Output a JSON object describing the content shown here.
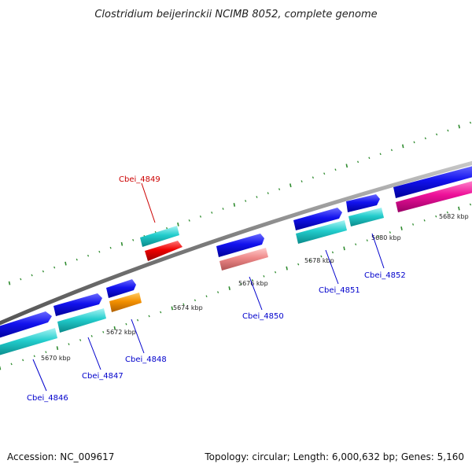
{
  "title": "Clostridium beijerinckii NCIMB 8052, complete genome",
  "footer": {
    "accession": "Accession: NC_009617",
    "info": "Topology: circular; Length: 6,000,632 bp; Genes: 5,160"
  },
  "colors": {
    "backbone": "#808080",
    "tick": "#2e8b2e",
    "gene_label_default": "#0000cc",
    "gene_label_highlight": "#cc0000",
    "callout_line_default": "#0000cc",
    "callout_line_highlight": "#cc0000"
  },
  "scale_labels": [
    "5670 kbp",
    "5672 kbp",
    "5674 kbp",
    "5676 kbp",
    "5678 kbp",
    "5680 kbp",
    "5682 kbp"
  ],
  "gene_labels": [
    {
      "name": "Cbei_4846",
      "color": "#0000cc"
    },
    {
      "name": "Cbei_4847",
      "color": "#0000cc"
    },
    {
      "name": "Cbei_4848",
      "color": "#0000cc"
    },
    {
      "name": "Cbei_4849",
      "color": "#cc0000"
    },
    {
      "name": "Cbei_4850",
      "color": "#0000cc"
    },
    {
      "name": "Cbei_4851",
      "color": "#0000cc"
    },
    {
      "name": "Cbei_4852",
      "color": "#0000cc"
    }
  ],
  "feature_colors": {
    "gene": "#1010e0",
    "cds_teal": "#20c8d0",
    "cds_orange": "#f08c00",
    "cds_red": "#ee1111",
    "cds_pink": "#ee8080",
    "cds_magenta": "#ee1199"
  }
}
